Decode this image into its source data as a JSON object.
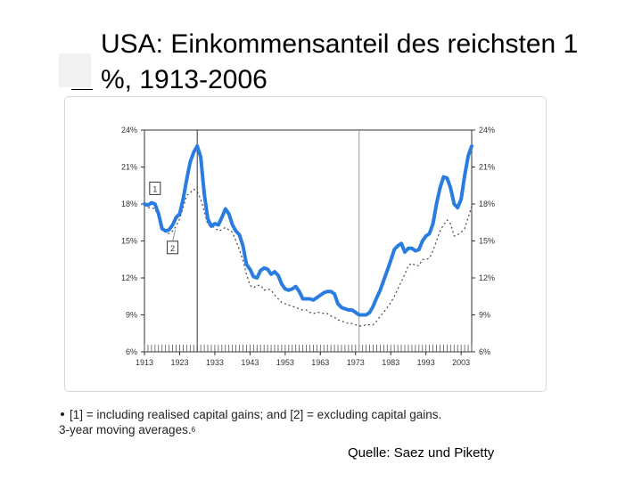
{
  "slide": {
    "title": "USA: Einkommensanteil des reichsten 1 %, 1913-2006",
    "source": "Quelle: Saez und Piketty"
  },
  "footnote": {
    "line1": "[1] = including realised capital gains; and [2] = excluding capital gains.",
    "line2": "3-year moving averages.",
    "sup": "6"
  },
  "chart_data": {
    "type": "line",
    "title": "",
    "xlabel": "",
    "ylabel": "",
    "xlim": [
      1913,
      2006
    ],
    "ylim": [
      6,
      24
    ],
    "y_ticks": [
      6,
      9,
      12,
      15,
      18,
      21,
      24
    ],
    "y_tick_labels": [
      "6%",
      "9%",
      "12%",
      "15%",
      "18%",
      "21%",
      "24%"
    ],
    "x_ticks": [
      1913,
      1923,
      1933,
      1943,
      1953,
      1963,
      1973,
      1983,
      1993,
      2003
    ],
    "x_tick_labels": [
      "1913",
      "1923",
      "1933",
      "1943",
      "1953",
      "1963",
      "1973",
      "1983",
      "1993",
      "2003"
    ],
    "vertical_markers": [
      1928,
      1974
    ],
    "grid": false,
    "colors": {
      "series1": "#2a7de0",
      "series2": "#444444"
    },
    "series": [
      {
        "name": "1",
        "style": "solid",
        "points": [
          [
            1913,
            18.0
          ],
          [
            1914,
            17.9
          ],
          [
            1915,
            18.1
          ],
          [
            1916,
            18.0
          ],
          [
            1917,
            17.2
          ],
          [
            1918,
            16.0
          ],
          [
            1919,
            15.8
          ],
          [
            1920,
            15.9
          ],
          [
            1921,
            16.3
          ],
          [
            1922,
            16.9
          ],
          [
            1923,
            17.2
          ],
          [
            1924,
            18.4
          ],
          [
            1925,
            20.0
          ],
          [
            1926,
            21.4
          ],
          [
            1927,
            22.2
          ],
          [
            1928,
            22.7
          ],
          [
            1929,
            21.8
          ],
          [
            1930,
            18.8
          ],
          [
            1931,
            16.8
          ],
          [
            1932,
            16.2
          ],
          [
            1933,
            16.4
          ],
          [
            1934,
            16.3
          ],
          [
            1935,
            16.9
          ],
          [
            1936,
            17.6
          ],
          [
            1937,
            17.2
          ],
          [
            1938,
            16.3
          ],
          [
            1939,
            15.8
          ],
          [
            1940,
            15.5
          ],
          [
            1941,
            14.6
          ],
          [
            1942,
            13.1
          ],
          [
            1943,
            12.7
          ],
          [
            1944,
            12.1
          ],
          [
            1945,
            12.0
          ],
          [
            1946,
            12.6
          ],
          [
            1947,
            12.8
          ],
          [
            1948,
            12.7
          ],
          [
            1949,
            12.3
          ],
          [
            1950,
            12.5
          ],
          [
            1951,
            12.2
          ],
          [
            1952,
            11.5
          ],
          [
            1953,
            11.1
          ],
          [
            1954,
            11.0
          ],
          [
            1955,
            11.1
          ],
          [
            1956,
            11.3
          ],
          [
            1957,
            10.9
          ],
          [
            1958,
            10.3
          ],
          [
            1959,
            10.3
          ],
          [
            1960,
            10.3
          ],
          [
            1961,
            10.2
          ],
          [
            1962,
            10.4
          ],
          [
            1963,
            10.6
          ],
          [
            1964,
            10.8
          ],
          [
            1965,
            10.9
          ],
          [
            1966,
            10.9
          ],
          [
            1967,
            10.7
          ],
          [
            1968,
            9.9
          ],
          [
            1969,
            9.6
          ],
          [
            1970,
            9.5
          ],
          [
            1971,
            9.4
          ],
          [
            1972,
            9.4
          ],
          [
            1973,
            9.2
          ],
          [
            1974,
            9.0
          ],
          [
            1975,
            9.0
          ],
          [
            1976,
            9.0
          ],
          [
            1977,
            9.2
          ],
          [
            1978,
            9.7
          ],
          [
            1979,
            10.4
          ],
          [
            1980,
            11.0
          ],
          [
            1981,
            11.8
          ],
          [
            1982,
            12.6
          ],
          [
            1983,
            13.4
          ],
          [
            1984,
            14.3
          ],
          [
            1985,
            14.6
          ],
          [
            1986,
            14.8
          ],
          [
            1987,
            14.1
          ],
          [
            1988,
            14.4
          ],
          [
            1989,
            14.4
          ],
          [
            1990,
            14.2
          ],
          [
            1991,
            14.3
          ],
          [
            1992,
            15.0
          ],
          [
            1993,
            15.4
          ],
          [
            1994,
            15.6
          ],
          [
            1995,
            16.4
          ],
          [
            1996,
            18.0
          ],
          [
            1997,
            19.3
          ],
          [
            1998,
            20.2
          ],
          [
            1999,
            20.1
          ],
          [
            2000,
            19.3
          ],
          [
            2001,
            18.0
          ],
          [
            2002,
            17.7
          ],
          [
            2003,
            18.4
          ],
          [
            2004,
            20.3
          ],
          [
            2005,
            21.9
          ],
          [
            2006,
            22.7
          ]
        ]
      },
      {
        "name": "2",
        "style": "dashed",
        "points": [
          [
            1913,
            17.9
          ],
          [
            1914,
            17.7
          ],
          [
            1915,
            17.7
          ],
          [
            1916,
            17.6
          ],
          [
            1917,
            16.9
          ],
          [
            1918,
            16.0
          ],
          [
            1919,
            15.7
          ],
          [
            1920,
            15.6
          ],
          [
            1921,
            15.8
          ],
          [
            1922,
            16.2
          ],
          [
            1923,
            16.8
          ],
          [
            1924,
            17.7
          ],
          [
            1925,
            18.7
          ],
          [
            1926,
            18.9
          ],
          [
            1927,
            19.2
          ],
          [
            1928,
            19.0
          ],
          [
            1929,
            18.4
          ],
          [
            1930,
            17.4
          ],
          [
            1931,
            16.3
          ],
          [
            1932,
            16.2
          ],
          [
            1933,
            16.1
          ],
          [
            1934,
            15.8
          ],
          [
            1935,
            15.9
          ],
          [
            1936,
            16.1
          ],
          [
            1937,
            15.9
          ],
          [
            1938,
            15.7
          ],
          [
            1939,
            15.0
          ],
          [
            1940,
            14.3
          ],
          [
            1941,
            13.4
          ],
          [
            1942,
            12.3
          ],
          [
            1943,
            11.4
          ],
          [
            1944,
            11.2
          ],
          [
            1945,
            11.4
          ],
          [
            1946,
            11.4
          ],
          [
            1947,
            11.0
          ],
          [
            1948,
            11.1
          ],
          [
            1949,
            11.0
          ],
          [
            1950,
            10.6
          ],
          [
            1951,
            10.3
          ],
          [
            1952,
            10.0
          ],
          [
            1953,
            9.9
          ],
          [
            1954,
            9.8
          ],
          [
            1955,
            9.7
          ],
          [
            1956,
            9.6
          ],
          [
            1957,
            9.5
          ],
          [
            1958,
            9.4
          ],
          [
            1959,
            9.4
          ],
          [
            1960,
            9.2
          ],
          [
            1961,
            9.1
          ],
          [
            1962,
            9.2
          ],
          [
            1963,
            9.2
          ],
          [
            1964,
            9.1
          ],
          [
            1965,
            9.1
          ],
          [
            1966,
            8.9
          ],
          [
            1967,
            8.8
          ],
          [
            1968,
            8.6
          ],
          [
            1969,
            8.5
          ],
          [
            1970,
            8.4
          ],
          [
            1971,
            8.3
          ],
          [
            1972,
            8.3
          ],
          [
            1973,
            8.2
          ],
          [
            1974,
            8.1
          ],
          [
            1975,
            8.1
          ],
          [
            1976,
            8.2
          ],
          [
            1977,
            8.2
          ],
          [
            1978,
            8.2
          ],
          [
            1979,
            8.5
          ],
          [
            1980,
            8.9
          ],
          [
            1981,
            9.2
          ],
          [
            1982,
            9.6
          ],
          [
            1983,
            10.0
          ],
          [
            1984,
            10.5
          ],
          [
            1985,
            11.1
          ],
          [
            1986,
            11.7
          ],
          [
            1987,
            12.3
          ],
          [
            1988,
            13.0
          ],
          [
            1989,
            13.2
          ],
          [
            1990,
            13.0
          ],
          [
            1991,
            13.0
          ],
          [
            1992,
            13.5
          ],
          [
            1993,
            13.5
          ],
          [
            1994,
            13.6
          ],
          [
            1995,
            14.2
          ],
          [
            1996,
            15.0
          ],
          [
            1997,
            15.8
          ],
          [
            1998,
            16.3
          ],
          [
            1999,
            16.7
          ],
          [
            2000,
            16.4
          ],
          [
            2001,
            15.4
          ],
          [
            2002,
            15.5
          ],
          [
            2003,
            15.7
          ],
          [
            2004,
            16.0
          ],
          [
            2005,
            16.9
          ],
          [
            2006,
            17.8
          ]
        ]
      }
    ]
  }
}
